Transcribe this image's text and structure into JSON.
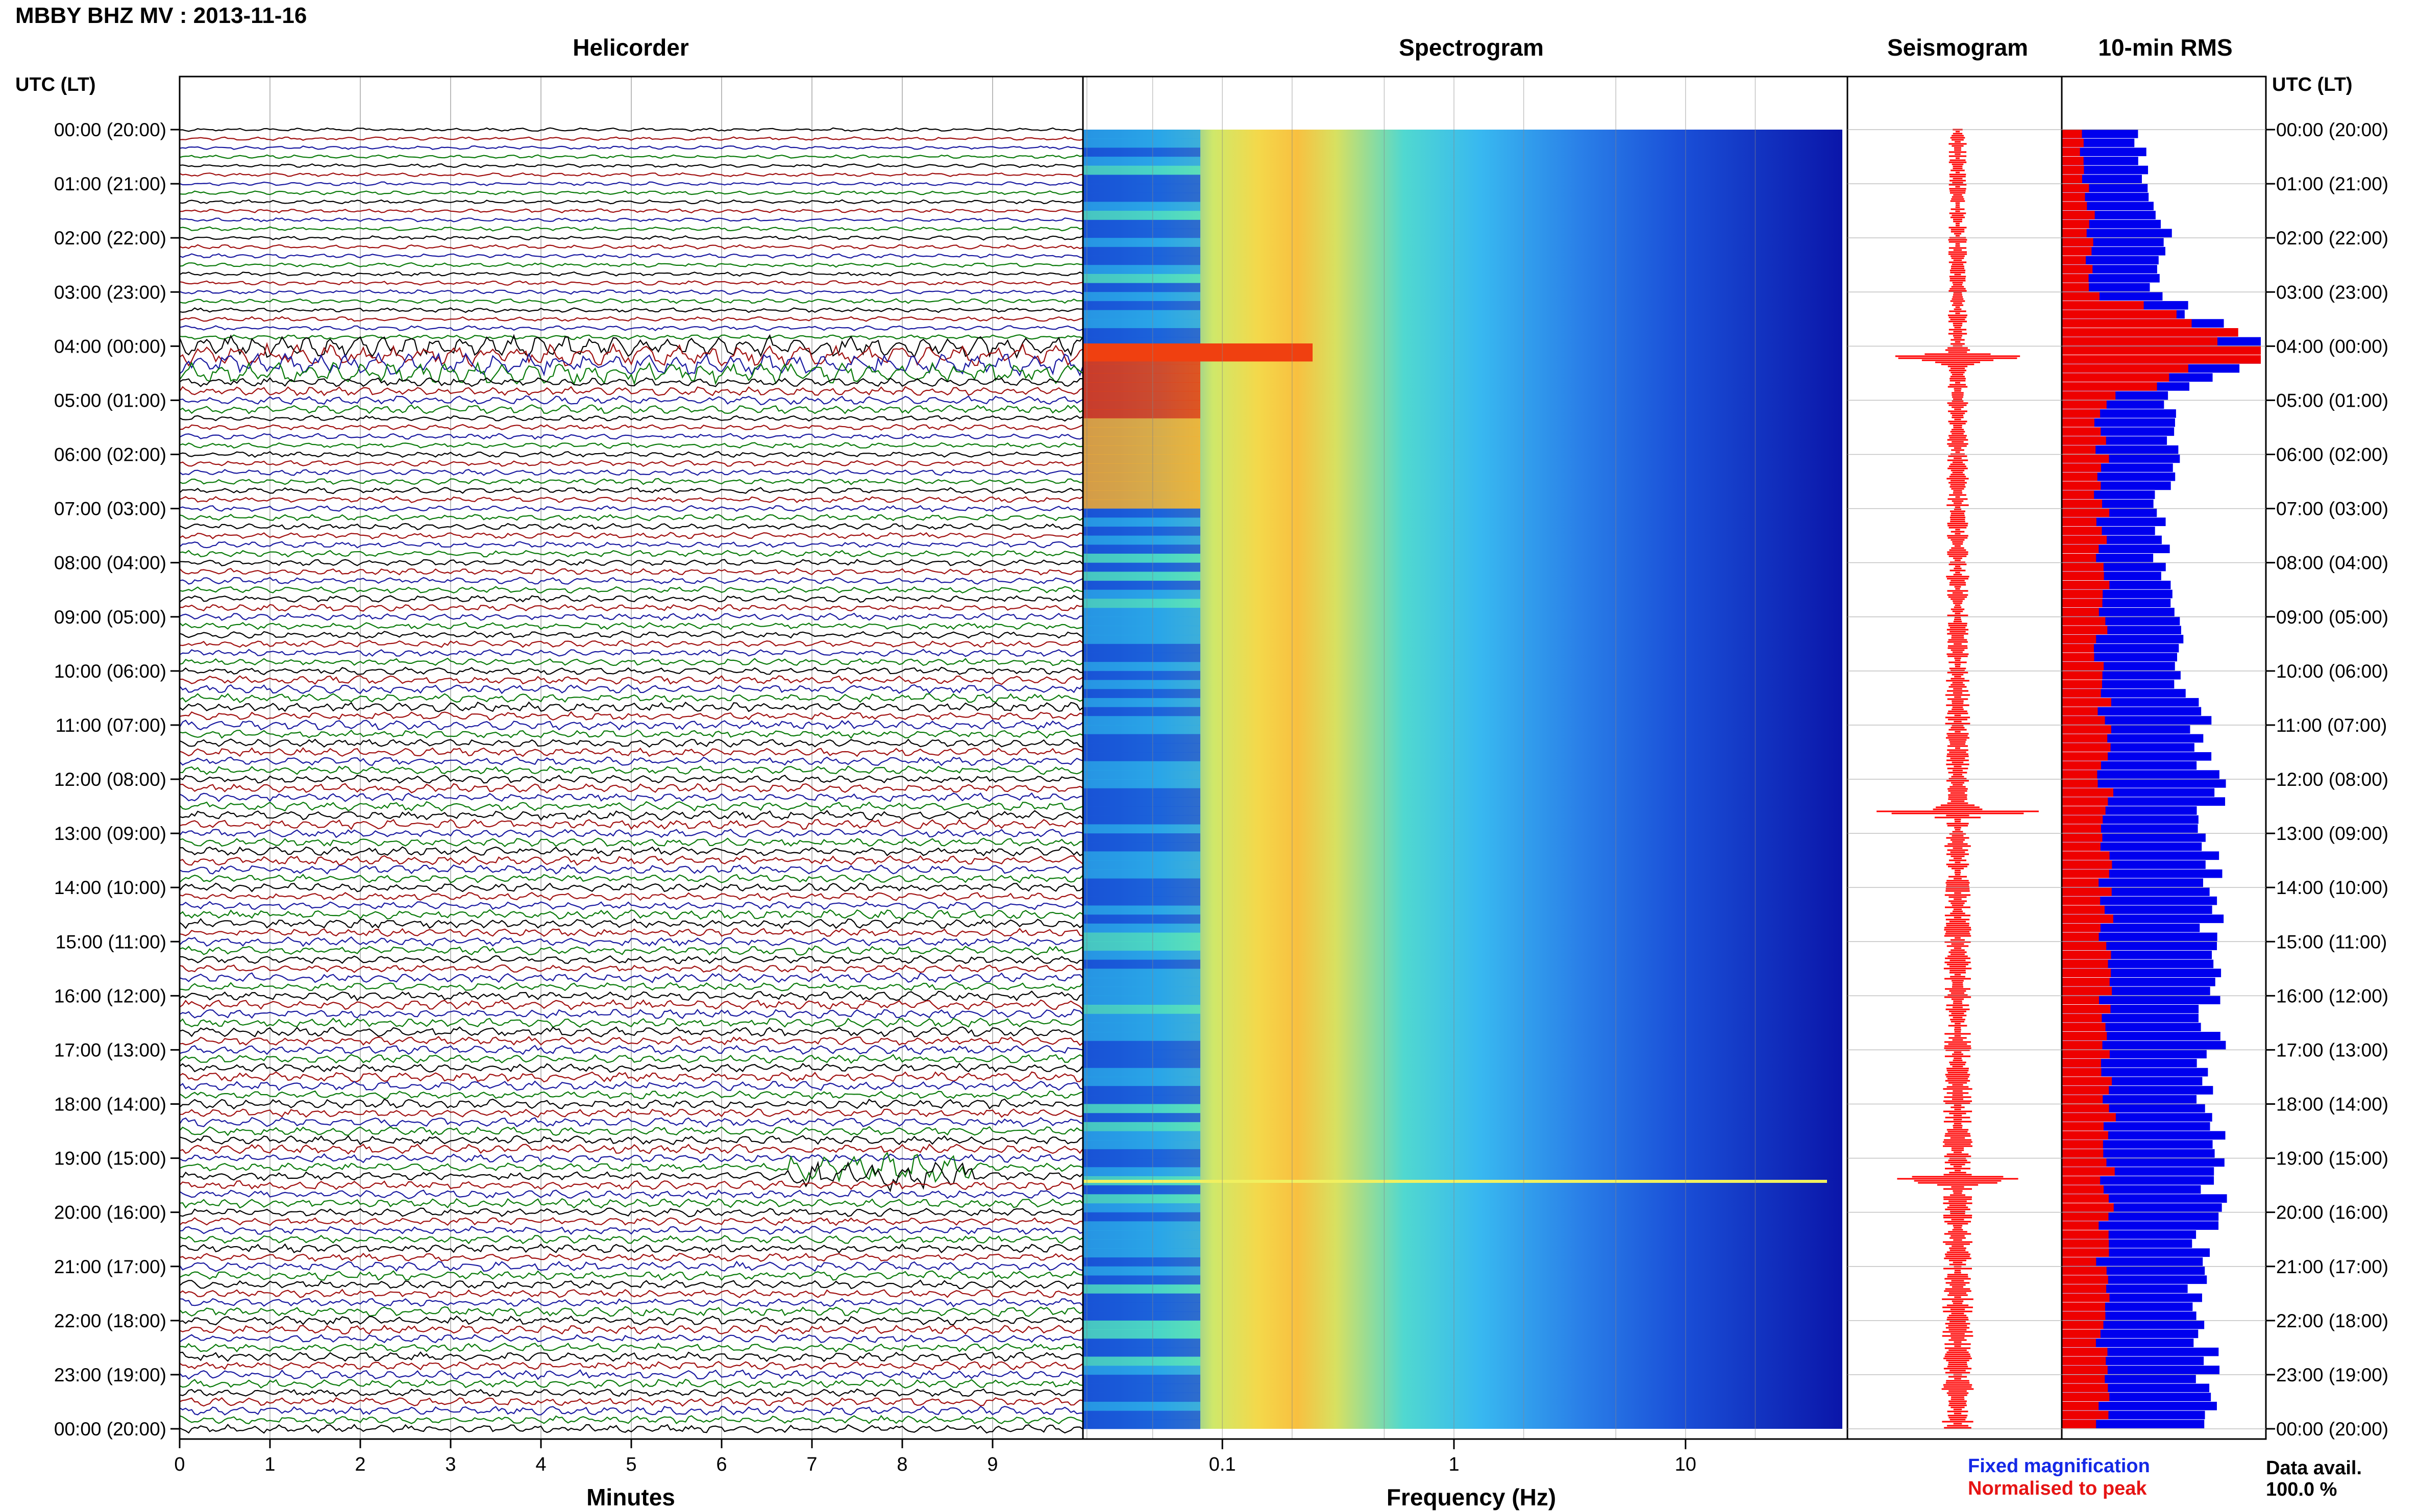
{
  "header": {
    "station_title": "MBBY BHZ MV : 2013-11-16"
  },
  "panels": {
    "helicorder": "Helicorder",
    "spectrogram": "Spectrogram",
    "seismogram": "Seismogram",
    "rms": "10-min RMS"
  },
  "time_axis": {
    "label": "UTC (LT)",
    "ticks": [
      "00:00 (20:00)",
      "01:00 (21:00)",
      "02:00 (22:00)",
      "03:00 (23:00)",
      "04:00 (00:00)",
      "05:00 (01:00)",
      "06:00 (02:00)",
      "07:00 (03:00)",
      "08:00 (04:00)",
      "09:00 (05:00)",
      "10:00 (06:00)",
      "11:00 (07:00)",
      "12:00 (08:00)",
      "13:00 (09:00)",
      "14:00 (10:00)",
      "15:00 (11:00)",
      "16:00 (12:00)",
      "17:00 (13:00)",
      "18:00 (14:00)",
      "19:00 (15:00)",
      "20:00 (16:00)",
      "21:00 (17:00)",
      "22:00 (18:00)",
      "23:00 (19:00)",
      "00:00 (20:00)"
    ]
  },
  "legend": {
    "fixed_magnification": "Fixed magnification",
    "normalised_to_peak": "Normalised to peak"
  },
  "data_availability": {
    "label": "Data avail.",
    "value": "100.0 %"
  },
  "colors": {
    "trace_cycle": [
      "#000000",
      "#a01010",
      "#1a1aa0",
      "#0a7a0a"
    ],
    "rms_fixed": "#0000ee",
    "rms_normalised": "#ee0000",
    "seismogram": "#ff0000"
  },
  "chart_data": [
    {
      "type": "line",
      "title": "Helicorder",
      "xlabel": "Minutes",
      "x_ticks": [
        "0",
        "1",
        "2",
        "3",
        "4",
        "5",
        "6",
        "7",
        "8",
        "9"
      ],
      "xlim": [
        0,
        10
      ],
      "ylim_hours_utc": [
        0,
        24
      ],
      "traces_per_hour": 6,
      "trace_count": 144,
      "events": [
        {
          "hour": 4.0,
          "minute": 0,
          "description_level": "large-amplitude oscillation"
        },
        {
          "hour": 19.2,
          "minute": 8.2,
          "amplitude": "high"
        }
      ]
    },
    {
      "type": "heatmap",
      "title": "Spectrogram",
      "xlabel": "Frequency (Hz)",
      "x_scale": "log",
      "x_ticks": [
        "0.1",
        "1",
        "10"
      ],
      "xlim": [
        0.025,
        50
      ],
      "ylim_hours_utc": [
        0,
        24
      ],
      "peak_band_hz": [
        0.15,
        0.35
      ]
    },
    {
      "type": "line",
      "title": "Seismogram",
      "ylim_hours_utc": [
        0,
        24
      ],
      "spikes_hours": [
        4.2,
        12.6,
        19.4
      ]
    },
    {
      "type": "bar",
      "title": "10-min RMS",
      "ylim_hours_utc": [
        0,
        24
      ],
      "series": [
        {
          "name": "Fixed magnification",
          "relative_values_hourly": [
            0.35,
            0.45,
            0.55,
            0.45,
            1.0,
            0.55,
            0.55,
            0.5,
            0.5,
            0.55,
            0.6,
            0.7,
            0.75,
            0.75,
            0.75,
            0.75,
            0.75,
            0.75,
            0.75,
            0.8,
            0.75,
            0.7,
            0.7,
            0.75,
            0.7
          ]
        },
        {
          "name": "Normalised to peak",
          "relative_values_hourly": [
            0.1,
            0.13,
            0.15,
            0.13,
            1.0,
            0.2,
            0.2,
            0.2,
            0.2,
            0.2,
            0.2,
            0.22,
            0.22,
            0.22,
            0.22,
            0.22,
            0.22,
            0.22,
            0.22,
            0.25,
            0.22,
            0.2,
            0.2,
            0.22,
            0.2
          ]
        }
      ]
    }
  ]
}
